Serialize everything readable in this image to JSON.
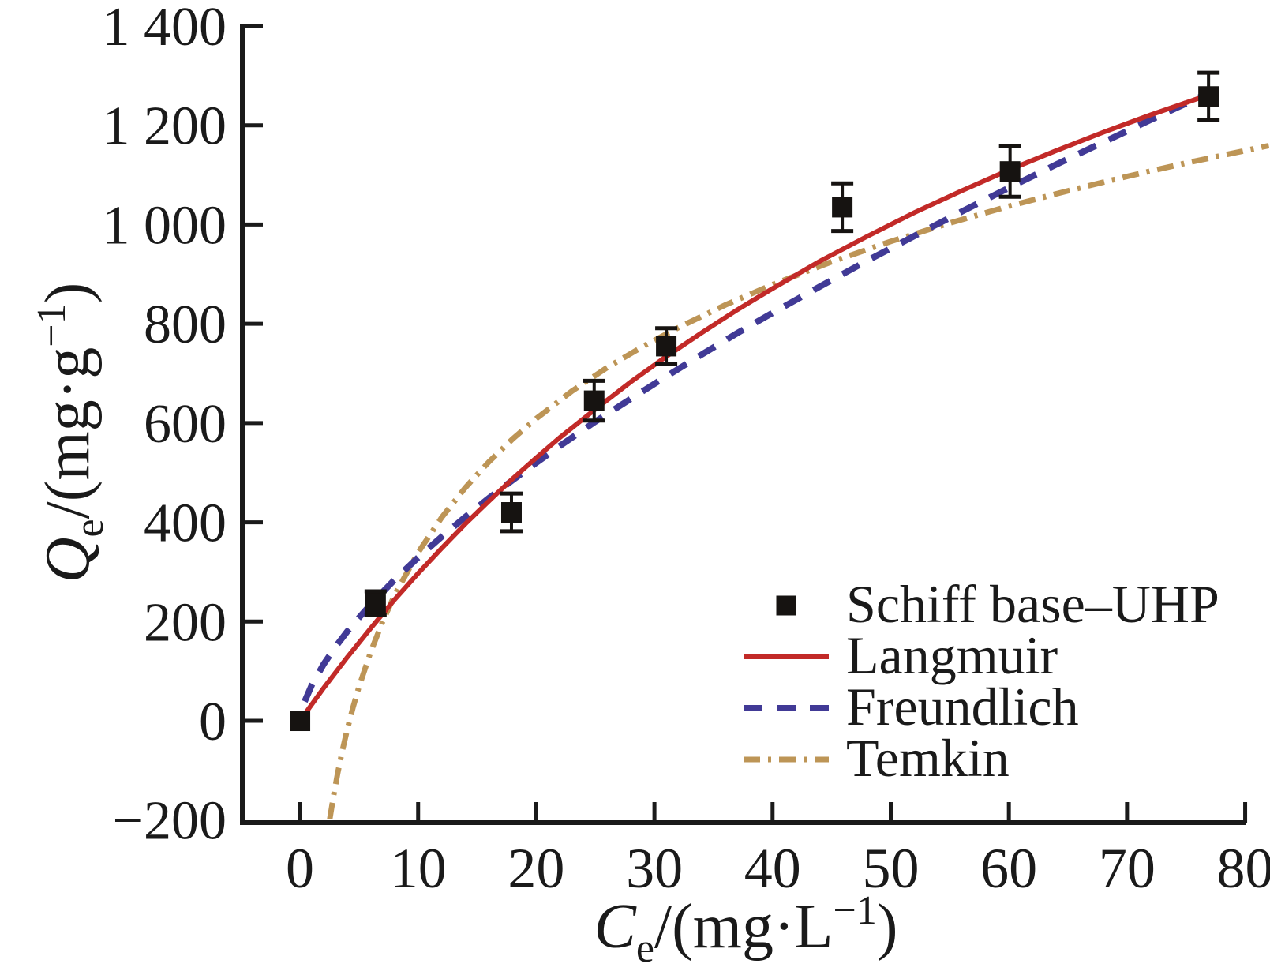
{
  "figure": {
    "background": "#ffffff",
    "text_color": "#1a1a1a",
    "axis_color": "#1a1a1a"
  },
  "chart_data": {
    "type": "scatter",
    "title": "",
    "x_axis": {
      "label_parts": [
        {
          "t": "C",
          "style": "italic"
        },
        {
          "t": "e",
          "pos": "sub"
        },
        {
          "t": "/(mg·L"
        },
        {
          "t": "−1",
          "pos": "sup"
        },
        {
          "t": ")"
        }
      ],
      "range": [
        -4.88,
        80.03
      ],
      "ticks": [
        0,
        10,
        20,
        30,
        40,
        50,
        60,
        70,
        80
      ],
      "tick_labels": [
        "0",
        "10",
        "20",
        "30",
        "40",
        "50",
        "60",
        "70",
        "80"
      ]
    },
    "y_axis": {
      "label_parts": [
        {
          "t": "Q",
          "style": "italic"
        },
        {
          "t": "e",
          "pos": "sub"
        },
        {
          "t": "/(mg·g"
        },
        {
          "t": "−1",
          "pos": "sup"
        },
        {
          "t": ")"
        }
      ],
      "range": [
        -205.2,
        1400
      ],
      "ticks": [
        1400,
        1200,
        1000,
        800,
        600,
        400,
        200,
        0,
        -200
      ],
      "tick_labels": [
        "1 400",
        "1 200",
        "1 000",
        "800",
        "600",
        "400",
        "200",
        "0",
        "−200"
      ]
    },
    "grid": false,
    "scatter_series": {
      "name": "Schiff base–UHP",
      "marker": "filled-square",
      "color": "#161311",
      "points": [
        {
          "ce": 0,
          "qe": 0,
          "err": 0
        },
        {
          "ce": 6.4,
          "qe": 237,
          "err": 24
        },
        {
          "ce": 17.9,
          "qe": 420,
          "err": 38
        },
        {
          "ce": 24.9,
          "qe": 645,
          "err": 40
        },
        {
          "ce": 31.0,
          "qe": 755,
          "err": 36
        },
        {
          "ce": 45.9,
          "qe": 1035,
          "err": 48
        },
        {
          "ce": 60.1,
          "qe": 1107,
          "err": 51
        },
        {
          "ce": 76.9,
          "qe": 1258,
          "err": 48
        }
      ]
    },
    "fit_curves": [
      {
        "name": "Langmuir",
        "style": "solid",
        "color": "#c22a28",
        "points": [
          [
            0,
            0
          ],
          [
            2,
            66
          ],
          [
            4,
            128
          ],
          [
            6,
            187
          ],
          [
            8,
            244
          ],
          [
            10,
            297
          ],
          [
            12,
            348
          ],
          [
            14,
            397
          ],
          [
            16,
            443
          ],
          [
            18,
            488
          ],
          [
            20,
            530
          ],
          [
            22,
            571
          ],
          [
            25,
            628
          ],
          [
            28,
            683
          ],
          [
            31,
            734
          ],
          [
            34,
            782
          ],
          [
            37,
            828
          ],
          [
            40,
            871
          ],
          [
            44,
            926
          ],
          [
            48,
            976
          ],
          [
            52,
            1024
          ],
          [
            56,
            1068
          ],
          [
            60,
            1110
          ],
          [
            64,
            1149
          ],
          [
            68,
            1186
          ],
          [
            72,
            1221
          ],
          [
            77,
            1262
          ]
        ]
      },
      {
        "name": "Freundlich",
        "style": "dashed",
        "color": "#413a96",
        "points": [
          [
            0.4,
            39
          ],
          [
            1,
            72
          ],
          [
            2,
            114
          ],
          [
            3,
            149
          ],
          [
            4,
            180
          ],
          [
            5,
            208
          ],
          [
            6,
            235
          ],
          [
            8,
            284
          ],
          [
            10,
            329
          ],
          [
            12,
            371
          ],
          [
            14,
            411
          ],
          [
            16,
            449
          ],
          [
            18,
            485
          ],
          [
            20,
            520
          ],
          [
            22,
            554
          ],
          [
            25,
            603
          ],
          [
            28,
            649
          ],
          [
            31,
            694
          ],
          [
            34,
            738
          ],
          [
            37,
            781
          ],
          [
            40,
            822
          ],
          [
            44,
            875
          ],
          [
            48,
            927
          ],
          [
            52,
            977
          ],
          [
            56,
            1026
          ],
          [
            60,
            1074
          ],
          [
            64,
            1121
          ],
          [
            68,
            1166
          ],
          [
            72,
            1211
          ],
          [
            77,
            1266
          ]
        ]
      },
      {
        "name": "Temkin",
        "style": "dash-dot",
        "color": "#bd9556",
        "points": [
          [
            2.52,
            -198
          ],
          [
            2.8,
            -157
          ],
          [
            3.2,
            -105
          ],
          [
            3.6,
            -59
          ],
          [
            4,
            -18
          ],
          [
            4.5,
            28
          ],
          [
            5,
            69
          ],
          [
            6,
            140
          ],
          [
            7,
            200
          ],
          [
            8,
            253
          ],
          [
            10,
            339
          ],
          [
            12,
            410
          ],
          [
            14,
            470
          ],
          [
            16,
            522
          ],
          [
            18,
            568
          ],
          [
            20,
            609
          ],
          [
            23,
            664
          ],
          [
            26,
            712
          ],
          [
            29,
            754
          ],
          [
            32,
            792
          ],
          [
            36,
            838
          ],
          [
            40,
            879
          ],
          [
            45,
            925
          ],
          [
            50,
            966
          ],
          [
            55,
            1003
          ],
          [
            60,
            1037
          ],
          [
            65,
            1068
          ],
          [
            70,
            1097
          ],
          [
            75,
            1124
          ],
          [
            82,
            1159
          ]
        ]
      }
    ],
    "legend": {
      "position": "lower-right",
      "items": [
        "Schiff base–UHP",
        "Langmuir",
        "Freundlich",
        "Temkin"
      ]
    }
  }
}
